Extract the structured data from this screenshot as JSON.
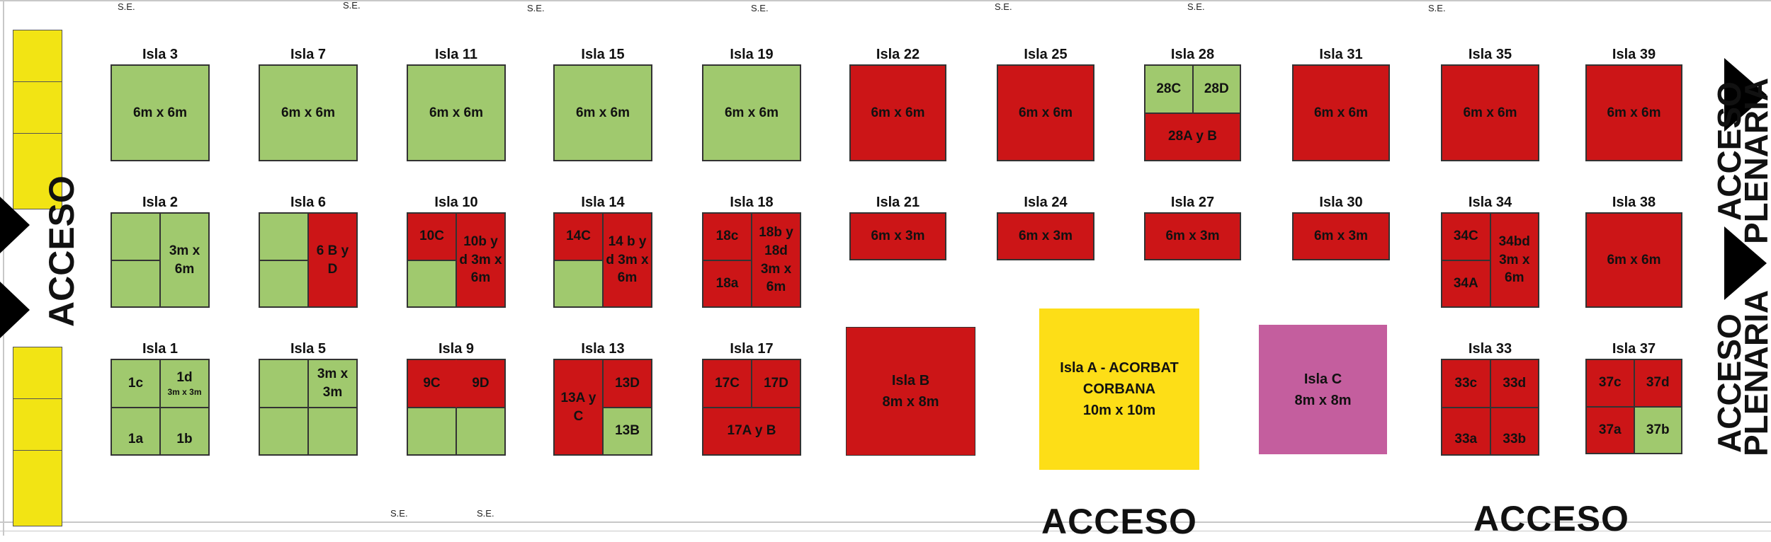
{
  "colors": {
    "available": "#a0c96e",
    "occupied": "#cc1517",
    "reserved_yellow": "#f2e414",
    "isla_a": "#fdde17",
    "isla_c": "#c45e9e"
  },
  "service_label": "S.E.",
  "entrances": {
    "left": "ACCESO",
    "bottom_1": "ACCESO",
    "bottom_2": "ACCESO",
    "right_1": {
      "line1": "ACCESO",
      "line2": "PLENARIA"
    },
    "right_2": {
      "line1": "ACCESO",
      "line2": "PLENARIA"
    }
  },
  "islands": {
    "1": {
      "label": "Isla 1",
      "cells": [
        "1c",
        "1d",
        "3m x 3m",
        "1a",
        "1b"
      ]
    },
    "2": {
      "label": "Isla 2",
      "cells": [
        "3m x 6m"
      ]
    },
    "3": {
      "label": "Isla 3",
      "cells": [
        "6m x 6m"
      ]
    },
    "5": {
      "label": "Isla 5",
      "cells": [
        "3m x 3m"
      ]
    },
    "6": {
      "label": "Isla 6",
      "cells": [
        "6 B y D"
      ]
    },
    "7": {
      "label": "Isla 7",
      "cells": [
        "6m x 6m"
      ]
    },
    "9": {
      "label": "Isla 9",
      "cells": [
        "9C",
        "9D"
      ]
    },
    "10": {
      "label": "Isla 10",
      "cells": [
        "10C",
        "10b y d 3m x 6m"
      ]
    },
    "11": {
      "label": "Isla 11",
      "cells": [
        "6m x 6m"
      ]
    },
    "13": {
      "label": "Isla 13",
      "cells": [
        "13A y C",
        "13D",
        "13B"
      ]
    },
    "14": {
      "label": "Isla 14",
      "cells": [
        "14C",
        "14 b y d 3m x 6m"
      ]
    },
    "15": {
      "label": "Isla 15",
      "cells": [
        "6m x 6m"
      ]
    },
    "17": {
      "label": "Isla 17",
      "cells": [
        "17C",
        "17D",
        "17A y B"
      ]
    },
    "18": {
      "label": "Isla 18",
      "cells": [
        "18c",
        "18a",
        "18b y 18d 3m x 6m"
      ]
    },
    "19": {
      "label": "Isla 19",
      "cells": [
        "6m x 6m"
      ]
    },
    "21": {
      "label": "Isla 21",
      "cells": [
        "6m x 3m"
      ]
    },
    "22": {
      "label": "Isla 22",
      "cells": [
        "6m x 6m"
      ]
    },
    "24": {
      "label": "Isla 24",
      "cells": [
        "6m x 3m"
      ]
    },
    "25": {
      "label": "Isla 25",
      "cells": [
        "6m x 6m"
      ]
    },
    "27": {
      "label": "Isla 27",
      "cells": [
        "6m x 3m"
      ]
    },
    "28": {
      "label": "Isla 28",
      "cells": [
        "28C",
        "28D",
        "28A y B"
      ]
    },
    "30": {
      "label": "Isla 30",
      "cells": [
        "6m x 3m"
      ]
    },
    "31": {
      "label": "Isla 31",
      "cells": [
        "6m x 6m"
      ]
    },
    "33": {
      "label": "Isla 33",
      "cells": [
        "33c",
        "33d",
        "33a",
        "33b"
      ]
    },
    "34": {
      "label": "Isla 34",
      "cells": [
        "34C",
        "34A",
        "34bd 3m x 6m"
      ]
    },
    "35": {
      "label": "Isla 35",
      "cells": [
        "6m x 6m"
      ]
    },
    "37": {
      "label": "Isla 37",
      "cells": [
        "37c",
        "37d",
        "37a",
        "37b"
      ]
    },
    "38": {
      "label": "Isla 38",
      "cells": [
        "6m x 6m"
      ]
    },
    "39": {
      "label": "Isla 39",
      "cells": [
        "6m x 6m"
      ]
    }
  },
  "large_islands": {
    "A": {
      "line1": "Isla A - ACORBAT",
      "line2": "CORBANA",
      "line3": "10m x 10m"
    },
    "B": {
      "line1": "Isla B",
      "line2": "8m x 8m"
    },
    "C": {
      "line1": "Isla C",
      "line2": "8m x 8m"
    }
  }
}
